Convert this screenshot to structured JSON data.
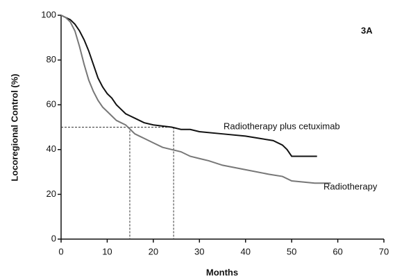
{
  "chart_data": {
    "type": "line",
    "annotation": "3A",
    "x_label": "Months",
    "y_label": "Locoregional Control (%)",
    "xlim": [
      0,
      70
    ],
    "xticks": [
      0,
      10,
      20,
      30,
      40,
      50,
      60,
      70
    ],
    "ylim": [
      0,
      100
    ],
    "yticks": [
      0,
      20,
      40,
      60,
      80,
      100
    ],
    "grid": false,
    "reference_y": 50,
    "medians": [
      14.9,
      24.4
    ],
    "series": [
      {
        "name": "Radiotherapy plus cetuximab",
        "color": "#111111",
        "x": [
          0,
          1,
          2,
          3,
          4,
          5,
          6,
          7,
          8,
          9,
          10,
          11,
          12,
          13,
          14,
          15,
          16,
          17,
          18,
          20,
          22,
          24,
          26,
          28,
          30,
          35,
          40,
          43,
          46,
          48,
          49,
          50,
          55.5
        ],
        "values": [
          100,
          99,
          98,
          96,
          93,
          89,
          84,
          78,
          72,
          68,
          65,
          63,
          60,
          58,
          56,
          55,
          54,
          53,
          52,
          51,
          50.5,
          50,
          49,
          49,
          48,
          47,
          46,
          45,
          44,
          42,
          40,
          37,
          37
        ]
      },
      {
        "name": "Radiotherapy",
        "color": "#777777",
        "x": [
          0,
          1,
          2,
          3,
          4,
          5,
          6,
          7,
          8,
          9,
          10,
          11,
          12,
          13,
          14,
          15,
          16,
          17,
          18,
          20,
          22,
          24,
          26,
          28,
          30,
          32,
          35,
          40,
          45,
          48,
          50,
          55,
          58.5
        ],
        "values": [
          100,
          99,
          97,
          93,
          86,
          78,
          71,
          66,
          62,
          59,
          57,
          55,
          53,
          52,
          51,
          49,
          47,
          46,
          45,
          43,
          41,
          40,
          39,
          37,
          36,
          35,
          33,
          31,
          29,
          28,
          26,
          25,
          25
        ]
      }
    ]
  }
}
